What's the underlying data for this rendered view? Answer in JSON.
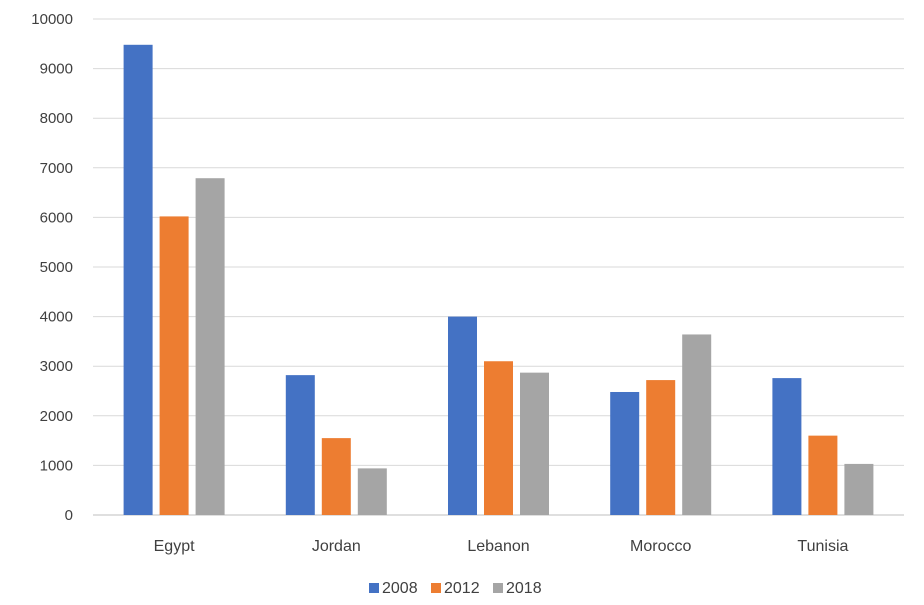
{
  "chart_data": {
    "type": "bar",
    "title": "",
    "xlabel": "",
    "ylabel": "",
    "categories": [
      "Egypt",
      "Jordan",
      "Lebanon",
      "Morocco",
      "Tunisia"
    ],
    "series": [
      {
        "name": "2008",
        "color": "#4472C4",
        "values": [
          9480,
          2820,
          4000,
          2480,
          2760
        ]
      },
      {
        "name": "2012",
        "color": "#ED7D31",
        "values": [
          6020,
          1550,
          3100,
          2720,
          1600
        ]
      },
      {
        "name": "2018",
        "color": "#A5A5A5",
        "values": [
          6790,
          940,
          2870,
          3640,
          1030
        ]
      }
    ],
    "ylim": [
      0,
      10000
    ],
    "yticks": [
      "0",
      "1000",
      "2000",
      "3000",
      "4000",
      "5000",
      "6000",
      "7000",
      "8000",
      "9000",
      "10000"
    ],
    "grid": true,
    "legend_position": "bottom"
  }
}
